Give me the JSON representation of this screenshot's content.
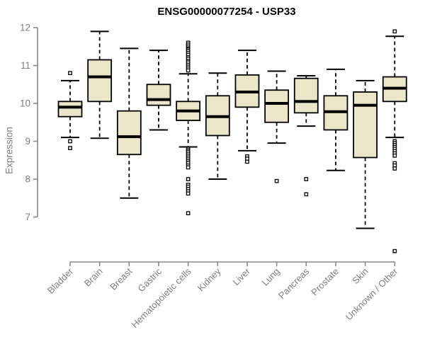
{
  "title": {
    "text": "ENSG00000077254 - USP33"
  },
  "chart_data": {
    "type": "boxplot",
    "title": "ENSG00000077254 - USP33",
    "ylabel": "Expression",
    "xlabel": "",
    "ylim": [
      7,
      12
    ],
    "y_ticks": [
      7,
      8,
      9,
      10,
      11,
      12
    ],
    "grid": false,
    "legend": false,
    "x_label_rotation_deg": 45,
    "categories": [
      "Bladder",
      "Brain",
      "Breast",
      "Gastric",
      "Hematopoietic cells",
      "Kidney",
      "Liver",
      "Lung",
      "Pancreas",
      "Prostate",
      "Skin",
      "Unknown / Other"
    ],
    "boxes": [
      {
        "category": "Bladder",
        "whisker_low": 9.1,
        "q1": 9.65,
        "median": 9.9,
        "q3": 10.05,
        "whisker_high": 10.6,
        "outliers": [
          10.8,
          9.0,
          8.82
        ]
      },
      {
        "category": "Brain",
        "whisker_low": 9.08,
        "q1": 10.05,
        "median": 10.7,
        "q3": 11.15,
        "whisker_high": 11.9,
        "outliers": []
      },
      {
        "category": "Breast",
        "whisker_low": 7.5,
        "q1": 8.65,
        "median": 9.12,
        "q3": 9.8,
        "whisker_high": 11.45,
        "outliers": []
      },
      {
        "category": "Gastric",
        "whisker_low": 9.3,
        "q1": 9.95,
        "median": 10.1,
        "q3": 10.5,
        "whisker_high": 11.4,
        "outliers": []
      },
      {
        "category": "Hematopoietic cells",
        "whisker_low": 8.85,
        "q1": 9.55,
        "median": 9.8,
        "q3": 10.05,
        "whisker_high": 10.78,
        "outliers": [
          11.6,
          11.55,
          11.5,
          11.45,
          11.42,
          11.38,
          11.33,
          11.28,
          11.22,
          11.18,
          11.12,
          11.08,
          11.02,
          10.97,
          10.92,
          10.87,
          8.8,
          8.76,
          8.72,
          8.67,
          8.62,
          8.57,
          8.52,
          8.47,
          8.42,
          8.36,
          8.31,
          8.0,
          7.85,
          7.8,
          7.74,
          7.68,
          7.62,
          7.1
        ]
      },
      {
        "category": "Kidney",
        "whisker_low": 8.0,
        "q1": 9.15,
        "median": 9.65,
        "q3": 10.2,
        "whisker_high": 10.8,
        "outliers": []
      },
      {
        "category": "Liver",
        "whisker_low": 8.75,
        "q1": 9.9,
        "median": 10.3,
        "q3": 10.75,
        "whisker_high": 11.4,
        "outliers": [
          8.6,
          8.54,
          8.46
        ]
      },
      {
        "category": "Lung",
        "whisker_low": 8.95,
        "q1": 9.5,
        "median": 10.0,
        "q3": 10.35,
        "whisker_high": 10.85,
        "outliers": [
          7.95
        ]
      },
      {
        "category": "Pancreas",
        "whisker_low": 9.4,
        "q1": 9.75,
        "median": 10.05,
        "q3": 10.66,
        "whisker_high": 10.73,
        "outliers": [
          8.0,
          7.6
        ]
      },
      {
        "category": "Prostate",
        "whisker_low": 8.23,
        "q1": 9.3,
        "median": 9.78,
        "q3": 10.2,
        "whisker_high": 10.9,
        "outliers": []
      },
      {
        "category": "Skin",
        "whisker_low": 6.7,
        "q1": 8.57,
        "median": 9.95,
        "q3": 10.3,
        "whisker_high": 10.6,
        "outliers": []
      },
      {
        "category": "Unknown / Other",
        "whisker_low": 9.1,
        "q1": 10.05,
        "median": 10.4,
        "q3": 10.7,
        "whisker_high": 11.77,
        "outliers": [
          11.9,
          9.0,
          8.95,
          8.9,
          8.85,
          8.8,
          8.74,
          8.68,
          8.62,
          8.42,
          8.36,
          8.28,
          6.1
        ]
      }
    ],
    "style": {
      "box_fill": "#ECE6C9",
      "box_border": "#000000",
      "median_color": "#000000",
      "whisker_style": "dashed",
      "outlier_marker": "open-square",
      "axis_color": "#888888",
      "tick_label_color": "#7f7f7f",
      "title_color": "#000000",
      "background": "#ffffff"
    }
  }
}
